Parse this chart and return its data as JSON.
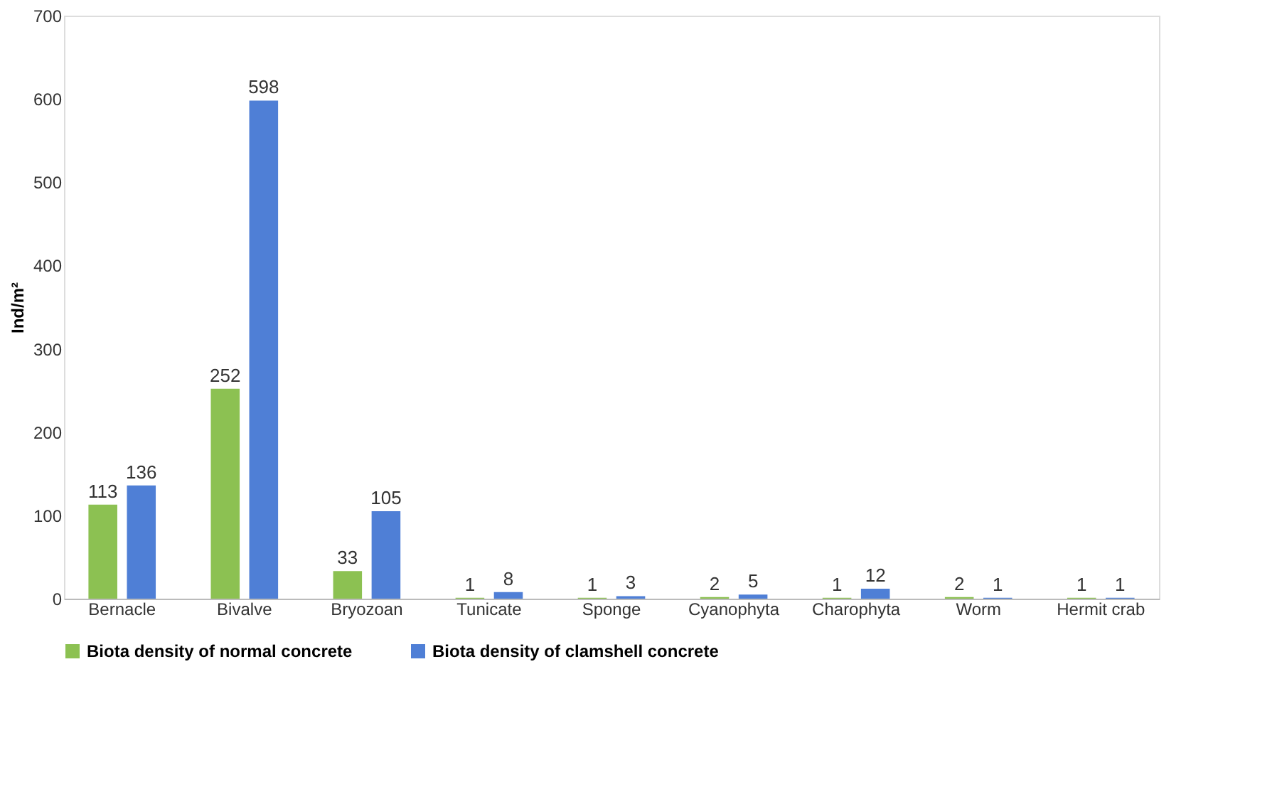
{
  "chart_data": {
    "type": "bar",
    "ylabel": "Ind/m²",
    "categories": [
      "Bernacle",
      "Bivalve",
      "Bryozoan",
      "Tunicate",
      "Sponge",
      "Cyanophyta",
      "Charophyta",
      "Worm",
      "Hermit crab"
    ],
    "series": [
      {
        "name": "Biota density of normal concrete",
        "color": "#8cc152",
        "values": [
          113,
          252,
          33,
          1,
          1,
          2,
          1,
          2,
          1
        ]
      },
      {
        "name": "Biota density of clamshell concrete",
        "color": "#4f7fd6",
        "values": [
          136,
          598,
          105,
          8,
          3,
          5,
          12,
          1,
          1
        ]
      }
    ],
    "ylim": [
      0,
      700
    ],
    "yticks": [
      0,
      100,
      200,
      300,
      400,
      500,
      600,
      700
    ],
    "grid": false,
    "legend": "bottom",
    "data_labels": true
  }
}
